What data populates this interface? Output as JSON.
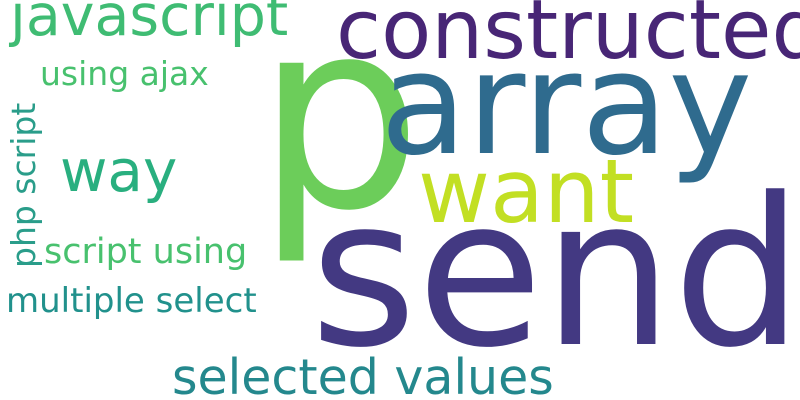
{
  "word_cloud": {
    "words": {
      "send": {
        "text": "send",
        "color": "#433982"
      },
      "p": {
        "text": "p",
        "color": "#6ccd5a"
      },
      "array": {
        "text": "array",
        "color": "#2f6b8e"
      },
      "constructed": {
        "text": "constructed",
        "color": "#482676"
      },
      "want": {
        "text": "want",
        "color": "#c2df23"
      },
      "javascript": {
        "text": "javascript",
        "color": "#3fbc73"
      },
      "using_ajax": {
        "text": "using ajax",
        "color": "#48c16e"
      },
      "way": {
        "text": "way",
        "color": "#29af7f"
      },
      "php_script": {
        "text": "php script",
        "color": "#2a9d8a"
      },
      "script_using": {
        "text": "script using",
        "color": "#48c16e"
      },
      "multiple_select": {
        "text": "multiple select",
        "color": "#21918c"
      },
      "selected_values": {
        "text": "selected values",
        "color": "#24888d"
      }
    }
  }
}
